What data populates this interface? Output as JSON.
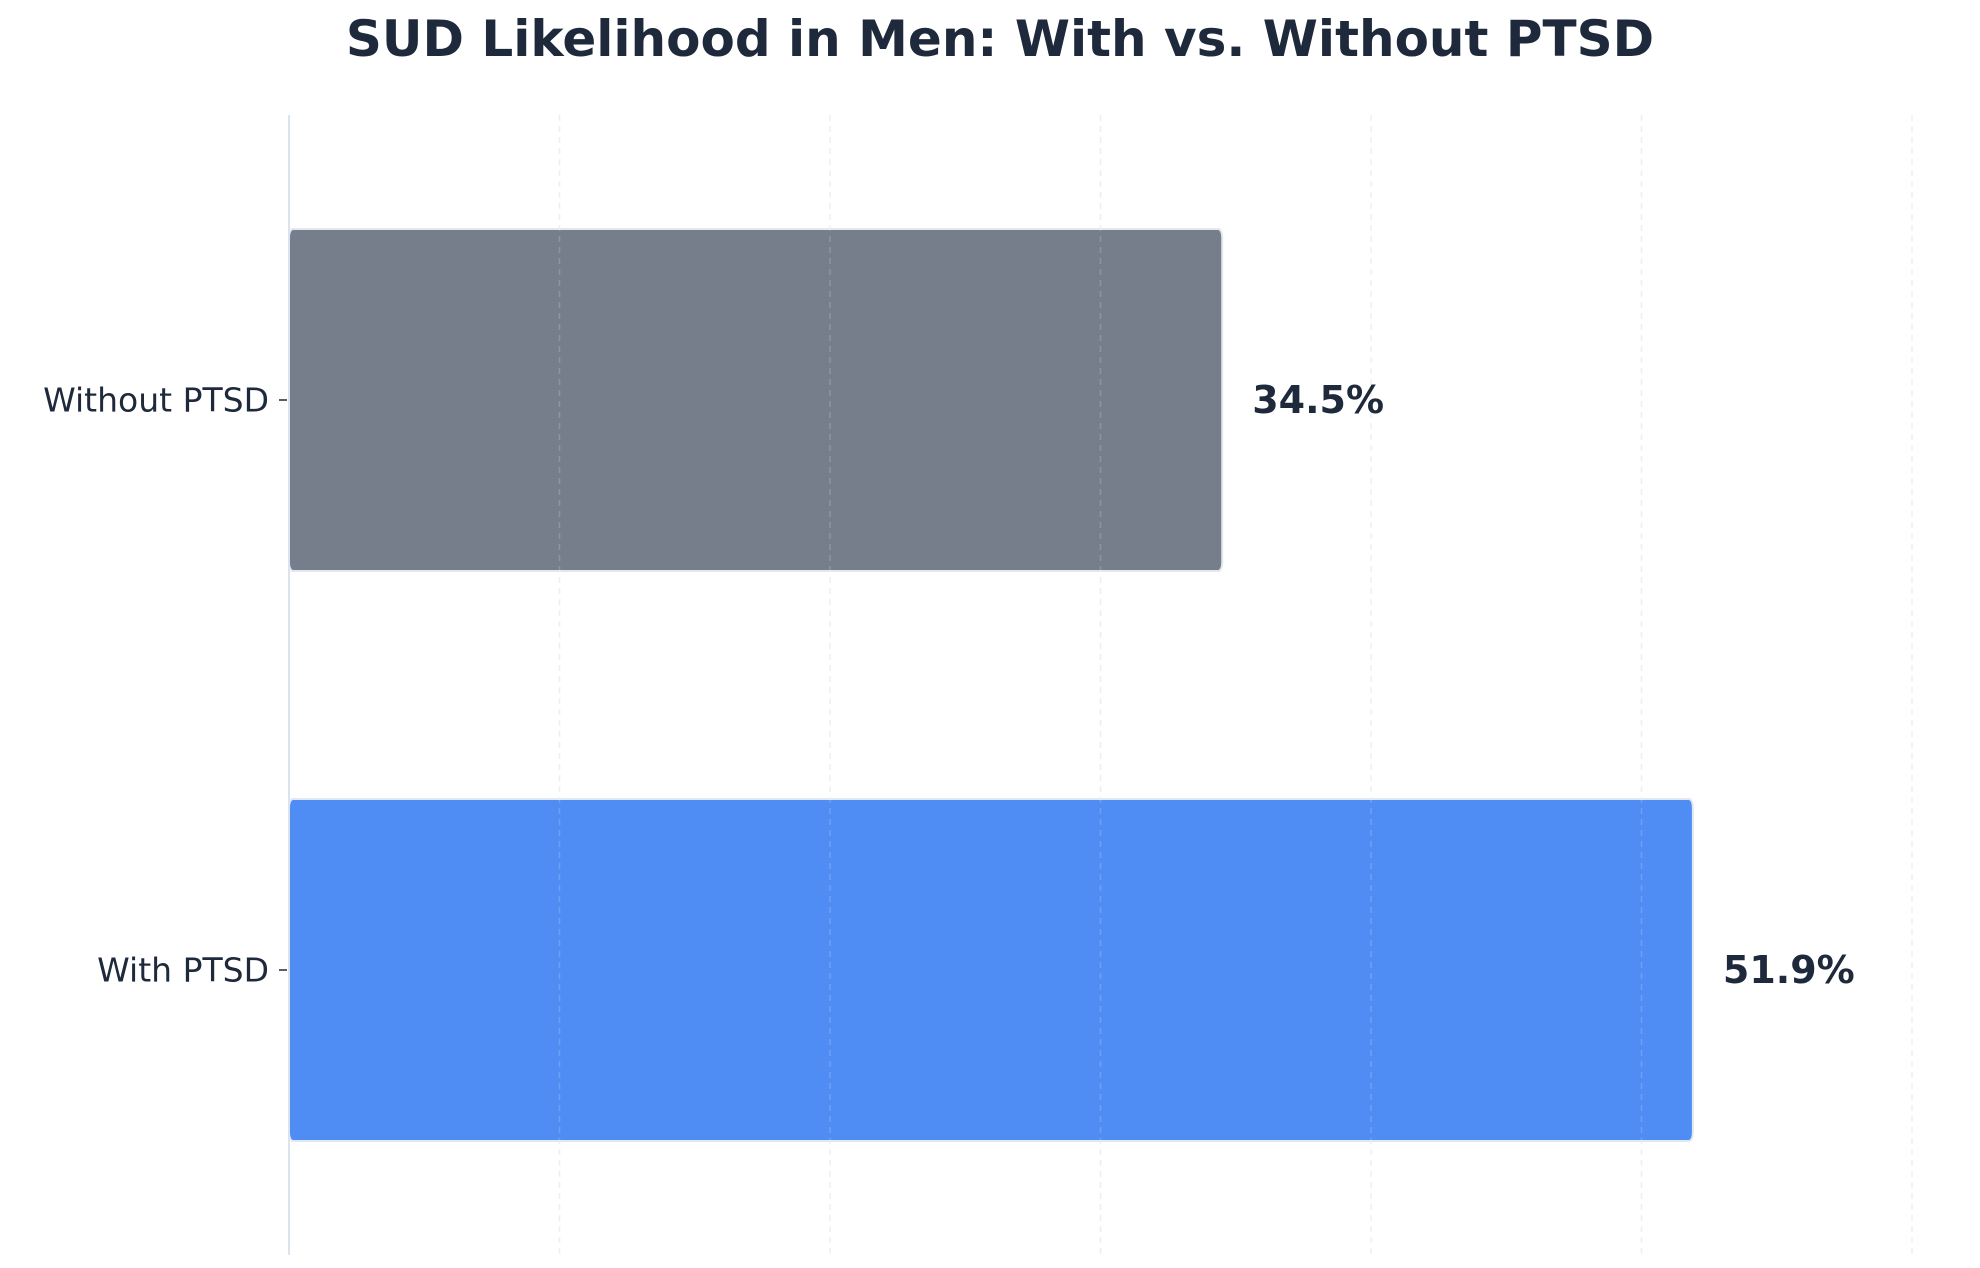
{
  "chart_data": {
    "type": "bar",
    "orientation": "horizontal",
    "title": "SUD Likelihood in Men: With vs. Without PTSD",
    "xlabel": "",
    "ylabel": "",
    "categories": [
      "Without PTSD",
      "With PTSD"
    ],
    "values": [
      34.5,
      51.9
    ],
    "value_labels": [
      "34.5%",
      "51.9%"
    ],
    "colors": [
      "#777e8b",
      "#4f8df5"
    ],
    "xlim": [
      0,
      60
    ],
    "x_gridlines": [
      10,
      20,
      30,
      40,
      50,
      60
    ],
    "grid": true,
    "grid_style": "dashed-vertical",
    "legend": "none",
    "x_tick_labels_visible": false
  }
}
